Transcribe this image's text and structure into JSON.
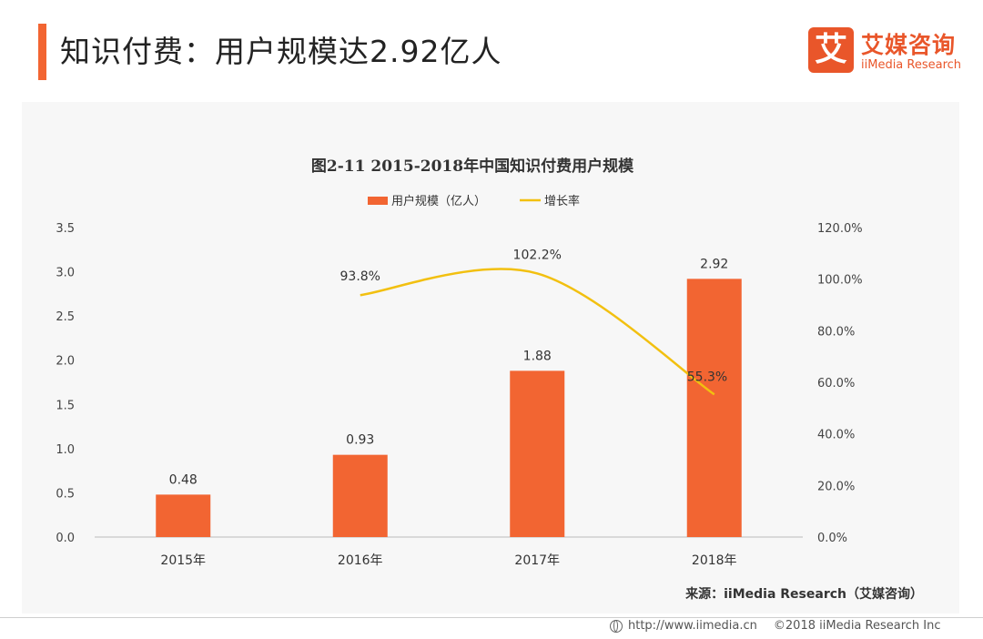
{
  "header": {
    "title": "知识付费：用户规模达2.92亿人"
  },
  "logo": {
    "mark": "艾",
    "name": "艾媒咨询",
    "sub": "iiMedia Research"
  },
  "footer": {
    "url": "http://www.iimedia.cn",
    "copyright": "©2018  iiMedia Research  Inc"
  },
  "colors": {
    "accent": "#f26532",
    "bar": "#f26532",
    "line": "#f2c010"
  },
  "chart_data": {
    "type": "bar",
    "title": "图2-11 2015-2018年中国知识付费用户规模",
    "categories": [
      "2015年",
      "2016年",
      "2017年",
      "2018年"
    ],
    "series": [
      {
        "name": "用户规模（亿人）",
        "type": "bar",
        "axis": "left",
        "values": [
          0.48,
          0.93,
          1.88,
          2.92
        ],
        "labels": [
          "0.48",
          "0.93",
          "1.88",
          "2.92"
        ]
      },
      {
        "name": "增长率",
        "type": "line",
        "axis": "right",
        "values": [
          null,
          93.8,
          102.2,
          55.3
        ],
        "labels": [
          "",
          "93.8%",
          "102.2%",
          "55.3%"
        ]
      }
    ],
    "ylim_left": [
      0,
      3.5
    ],
    "yticks_left": [
      "0.0",
      "0.5",
      "1.0",
      "1.5",
      "2.0",
      "2.5",
      "3.0",
      "3.5"
    ],
    "ylim_right": [
      0,
      120
    ],
    "yticks_right": [
      "0.0%",
      "20.0%",
      "40.0%",
      "60.0%",
      "80.0%",
      "100.0%",
      "120.0%"
    ],
    "legend_position": "top-center",
    "grid": false,
    "source": "来源：iiMedia Research（艾媒咨询）"
  }
}
